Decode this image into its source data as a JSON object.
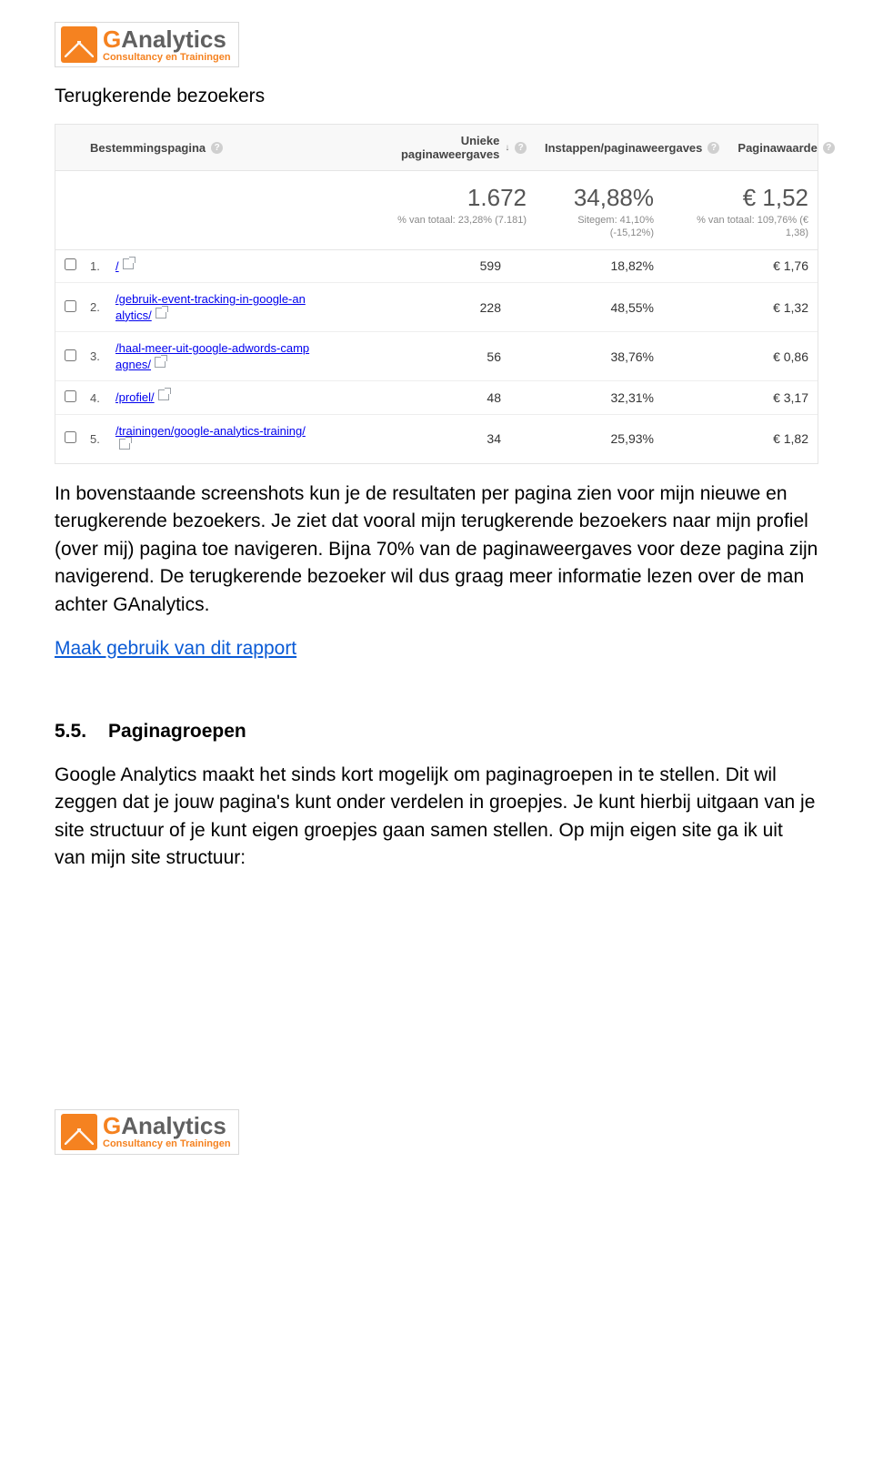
{
  "logo": {
    "title_g": "G",
    "title_rest": "Analytics",
    "subtitle": "Consultancy en Trainingen"
  },
  "section_title": "Terugkerende bezoekers",
  "table": {
    "headers": {
      "path": "Bestemmingspagina",
      "metric_a": "Unieke paginaweergaves",
      "metric_b": "Instappen/paginaweergaves",
      "metric_c": "Paginawaarde"
    },
    "summary": {
      "a_big": "1.672",
      "a_small": "% van totaal: 23,28% (7.181)",
      "b_big": "34,88%",
      "b_small": "Sitegem: 41,10% (-15,12%)",
      "c_big": "€ 1,52",
      "c_small": "% van totaal: 109,76% (€ 1,38)"
    },
    "rows": [
      {
        "idx": "1.",
        "path": "/",
        "a": "599",
        "b": "18,82%",
        "c": "€ 1,76"
      },
      {
        "idx": "2.",
        "path": "/gebruik-event-tracking-in-google-analytics/",
        "a": "228",
        "b": "48,55%",
        "c": "€ 1,32"
      },
      {
        "idx": "3.",
        "path": "/haal-meer-uit-google-adwords-campagnes/",
        "a": "56",
        "b": "38,76%",
        "c": "€ 0,86"
      },
      {
        "idx": "4.",
        "path": "/profiel/",
        "a": "48",
        "b": "32,31%",
        "c": "€ 3,17"
      },
      {
        "idx": "5.",
        "path": "/trainingen/google-analytics-training/",
        "a": "34",
        "b": "25,93%",
        "c": "€ 1,82"
      }
    ]
  },
  "para1": "In bovenstaande screenshots kun je de resultaten per pagina zien voor mijn nieuwe en terugkerende bezoekers. Je ziet dat vooral mijn terugkerende bezoekers naar mijn profiel (over mij) pagina toe navigeren. Bijna 70% van de paginaweergaves voor deze pagina zijn navigerend. De terugkerende bezoeker wil dus graag meer informatie lezen over de man achter GAnalytics.",
  "link_text": "Maak gebruik van dit rapport",
  "heading": {
    "num": "5.5.",
    "txt": "Paginagroepen"
  },
  "para2": "Google Analytics maakt het sinds kort mogelijk om paginagroepen in te stellen. Dit wil zeggen dat je jouw pagina's kunt onder verdelen in groepjes. Je kunt hierbij uitgaan van je site structuur of je kunt eigen groepjes gaan samen stellen. Op mijn eigen site ga ik uit van mijn site structuur:"
}
